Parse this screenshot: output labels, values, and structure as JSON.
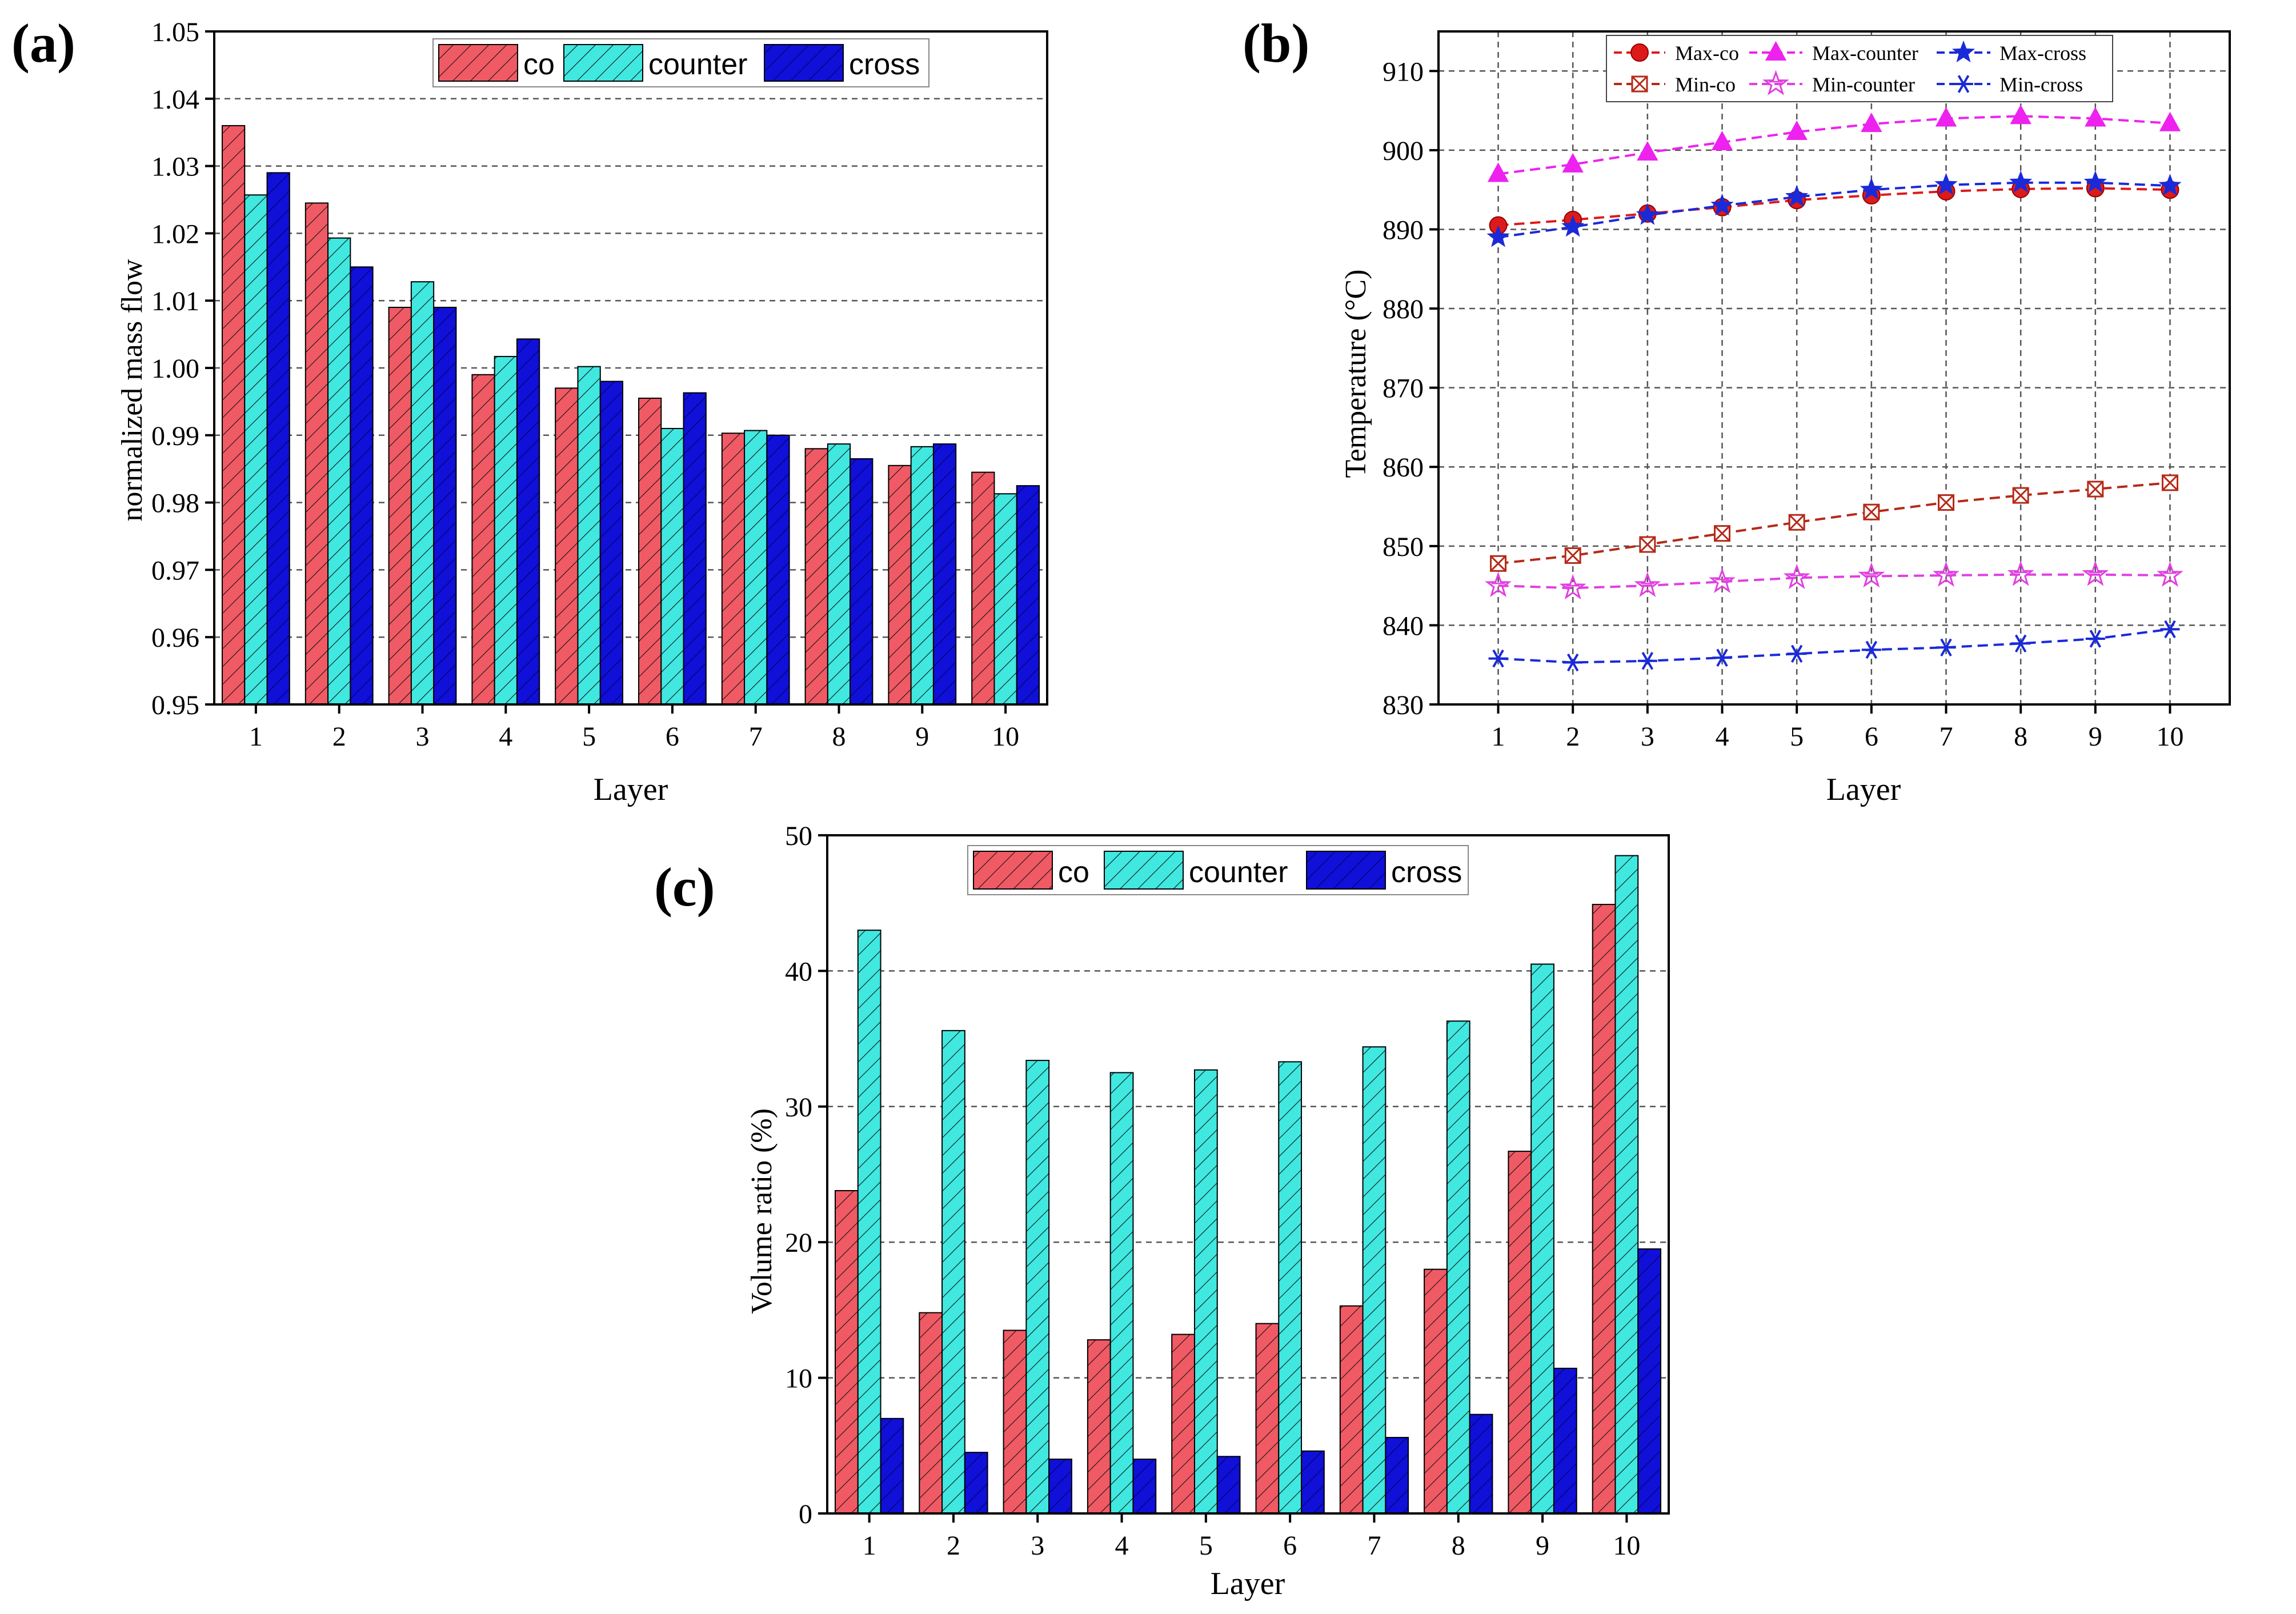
{
  "colors": {
    "co": "#f05a64",
    "counter": "#40e8e0",
    "cross": "#1010d8",
    "max_co": "#dd1a1a",
    "max_counter": "#ee22ee",
    "max_cross": "#1a2ad8",
    "min_co": "#b42a18",
    "min_counter": "#e040e0",
    "min_cross": "#1a2ad8",
    "grid": "#555555",
    "axis": "#000000"
  },
  "chart_data": [
    {
      "id": "a",
      "panel_label": "(a)",
      "type": "bar",
      "title": "",
      "xlabel": "Layer",
      "ylabel": "normalized mass flow",
      "categories": [
        "1",
        "2",
        "3",
        "4",
        "5",
        "6",
        "7",
        "8",
        "9",
        "10"
      ],
      "ylim": [
        0.95,
        1.05
      ],
      "yticks": [
        0.95,
        0.96,
        0.97,
        0.98,
        0.99,
        1.0,
        1.01,
        1.02,
        1.03,
        1.04,
        1.05
      ],
      "ytick_labels": [
        "0.95",
        "0.96",
        "0.97",
        "0.98",
        "0.99",
        "1.00",
        "1.01",
        "1.02",
        "1.03",
        "1.04",
        "1.05"
      ],
      "grid": true,
      "legend_position": "top-right",
      "series": [
        {
          "name": "co",
          "color_key": "co",
          "values": [
            1.036,
            1.0245,
            1.009,
            0.999,
            0.997,
            0.9955,
            0.9903,
            0.988,
            0.9855,
            0.9845
          ]
        },
        {
          "name": "counter",
          "color_key": "counter",
          "values": [
            1.0257,
            1.0193,
            1.0128,
            1.0017,
            1.0002,
            0.991,
            0.9907,
            0.9887,
            0.9883,
            0.9813
          ]
        },
        {
          "name": "cross",
          "color_key": "cross",
          "values": [
            1.029,
            1.015,
            1.009,
            1.0043,
            0.998,
            0.9963,
            0.99,
            0.9865,
            0.9887,
            0.9825
          ]
        }
      ]
    },
    {
      "id": "b",
      "panel_label": "(b)",
      "type": "line",
      "title": "",
      "xlabel": "Layer",
      "ylabel": "Temperature (°C)",
      "x": [
        1,
        2,
        3,
        4,
        5,
        6,
        7,
        8,
        9,
        10
      ],
      "xticks": [
        1,
        2,
        3,
        4,
        5,
        6,
        7,
        8,
        9,
        10
      ],
      "xlim": [
        0.2,
        10.8
      ],
      "ylim": [
        830,
        915
      ],
      "yticks": [
        830,
        840,
        850,
        860,
        870,
        880,
        890,
        900,
        910
      ],
      "grid": true,
      "legend_position": "top",
      "series": [
        {
          "name": "Max-co",
          "color_key": "max_co",
          "marker": "circle",
          "values": [
            890.5,
            891.2,
            892.0,
            892.8,
            893.7,
            894.3,
            894.8,
            895.1,
            895.2,
            895.0
          ]
        },
        {
          "name": "Max-counter",
          "color_key": "max_counter",
          "marker": "triangle",
          "values": [
            897.0,
            898.2,
            899.7,
            901.0,
            902.3,
            903.3,
            904.0,
            904.3,
            904.0,
            903.4
          ]
        },
        {
          "name": "Max-cross",
          "color_key": "max_cross",
          "marker": "star",
          "values": [
            889.0,
            890.3,
            891.8,
            893.0,
            894.1,
            895.0,
            895.6,
            895.9,
            895.9,
            895.5
          ]
        },
        {
          "name": "Min-co",
          "color_key": "min_co",
          "marker": "square-x",
          "values": [
            847.8,
            848.8,
            850.2,
            851.6,
            853.0,
            854.3,
            855.5,
            856.4,
            857.2,
            858.0
          ]
        },
        {
          "name": "Min-counter",
          "color_key": "min_counter",
          "marker": "star-open",
          "values": [
            845.0,
            844.7,
            845.0,
            845.5,
            846.0,
            846.2,
            846.3,
            846.4,
            846.4,
            846.3
          ]
        },
        {
          "name": "Min-cross",
          "color_key": "min_cross",
          "marker": "asterisk",
          "values": [
            835.8,
            835.3,
            835.5,
            835.9,
            836.4,
            836.9,
            837.2,
            837.7,
            838.3,
            839.5
          ]
        }
      ]
    },
    {
      "id": "c",
      "panel_label": "(c)",
      "type": "bar",
      "title": "",
      "xlabel": "Layer",
      "ylabel": "Volume ratio (%)",
      "categories": [
        "1",
        "2",
        "3",
        "4",
        "5",
        "6",
        "7",
        "8",
        "9",
        "10"
      ],
      "ylim": [
        0,
        50
      ],
      "yticks": [
        0,
        10,
        20,
        30,
        40,
        50
      ],
      "ytick_labels": [
        "0",
        "10",
        "20",
        "30",
        "40",
        "50"
      ],
      "grid": true,
      "legend_position": "top-right",
      "series": [
        {
          "name": "co",
          "color_key": "co",
          "values": [
            23.8,
            14.8,
            13.5,
            12.8,
            13.2,
            14.0,
            15.3,
            18.0,
            26.7,
            44.9
          ]
        },
        {
          "name": "counter",
          "color_key": "counter",
          "values": [
            43.0,
            35.6,
            33.4,
            32.5,
            32.7,
            33.3,
            34.4,
            36.3,
            40.5,
            48.5
          ]
        },
        {
          "name": "cross",
          "color_key": "cross",
          "values": [
            7.0,
            4.5,
            4.0,
            4.0,
            4.2,
            4.6,
            5.6,
            7.3,
            10.7,
            19.5
          ]
        }
      ]
    }
  ]
}
